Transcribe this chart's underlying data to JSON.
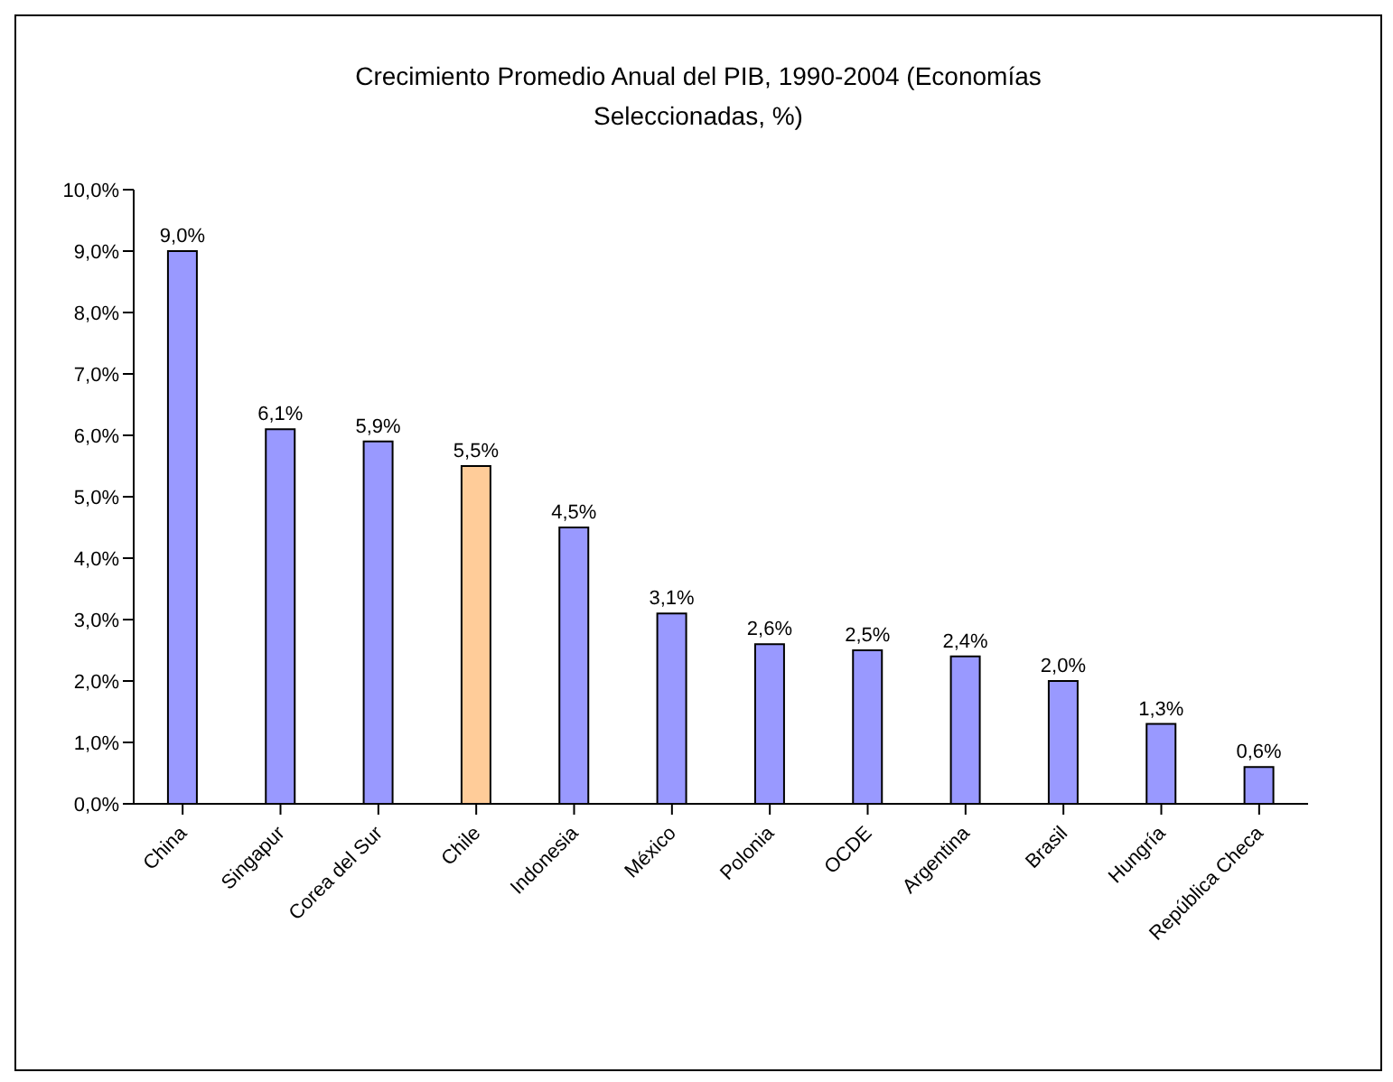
{
  "chart_data": {
    "type": "bar",
    "title": "Crecimiento Promedio Anual del PIB, 1990-2004 (Economías Seleccionadas, %)",
    "categories": [
      "China",
      "Singapur",
      "Corea del Sur",
      "Chile",
      "Indonesia",
      "México",
      "Polonia",
      "OCDE",
      "Argentina",
      "Brasil",
      "Hungría",
      "República Checa"
    ],
    "values": [
      9.0,
      6.1,
      5.9,
      5.5,
      4.5,
      3.1,
      2.6,
      2.5,
      2.4,
      2.0,
      1.3,
      0.6
    ],
    "value_labels": [
      "9,0%",
      "6,1%",
      "5,9%",
      "5,5%",
      "4,5%",
      "3,1%",
      "2,6%",
      "2,5%",
      "2,4%",
      "2,0%",
      "1,3%",
      "0,6%"
    ],
    "colors": [
      "#9999ff",
      "#9999ff",
      "#9999ff",
      "#ffcc99",
      "#9999ff",
      "#9999ff",
      "#9999ff",
      "#9999ff",
      "#9999ff",
      "#9999ff",
      "#9999ff",
      "#9999ff"
    ],
    "ylim": [
      0,
      10
    ],
    "yticks": [
      {
        "value": 0,
        "label": "0,0%"
      },
      {
        "value": 1,
        "label": "1,0%"
      },
      {
        "value": 2,
        "label": "2,0%"
      },
      {
        "value": 3,
        "label": "3,0%"
      },
      {
        "value": 4,
        "label": "4,0%"
      },
      {
        "value": 5,
        "label": "5,0%"
      },
      {
        "value": 6,
        "label": "6,0%"
      },
      {
        "value": 7,
        "label": "7,0%"
      },
      {
        "value": 8,
        "label": "8,0%"
      },
      {
        "value": 9,
        "label": "9,0%"
      },
      {
        "value": 10,
        "label": "10,0%"
      }
    ],
    "grid": false,
    "legend": false
  }
}
